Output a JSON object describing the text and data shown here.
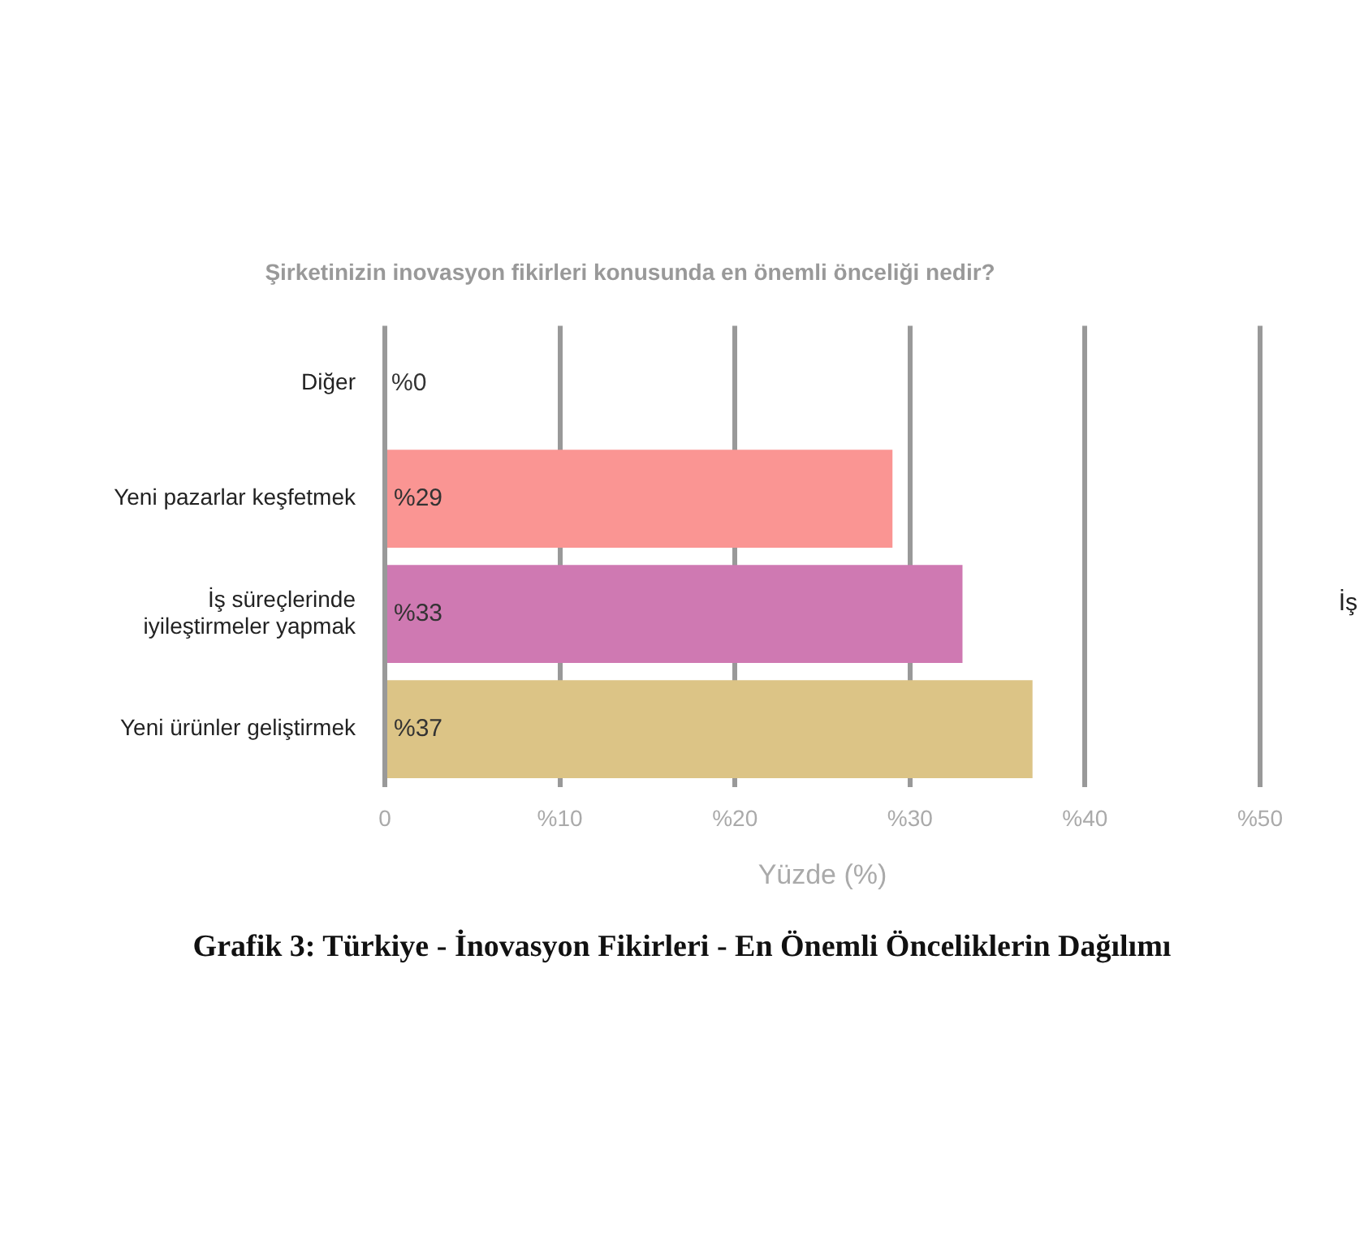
{
  "chart_data": {
    "type": "bar",
    "orientation": "horizontal",
    "title": "Şirketinizin inovasyon fikirleri konusunda en önemli önceliği nedir?",
    "xlabel": "Yüzde (%)",
    "categories": [
      "Diğer",
      "Yeni pazarlar keşfetmek",
      "İş süreçlerinde iyileştirmeler yapmak",
      "Yeni ürünler geliştirmek"
    ],
    "values": [
      0,
      29,
      33,
      37
    ],
    "colors": [
      "#9fb8d8",
      "#fa9593",
      "#cf79b2",
      "#dcc486"
    ],
    "value_labels": [
      "%0",
      "%29",
      "%33",
      "%37"
    ],
    "xlim": [
      0,
      50
    ],
    "xticks": [
      0,
      {
        "value": 10,
        "label": "%10"
      },
      {
        "value": 20,
        "label": "%20"
      },
      {
        "value": 30,
        "label": "%30"
      },
      {
        "value": 40,
        "label": "%40"
      },
      {
        "value": 50,
        "label": "%50"
      }
    ],
    "grid": "x",
    "legend": false,
    "annotations": [
      "Grafik 3: Türkiye - İnovasyon Fikirleri - En Önemli Önceliklerin Dağılımı",
      "İş"
    ]
  }
}
